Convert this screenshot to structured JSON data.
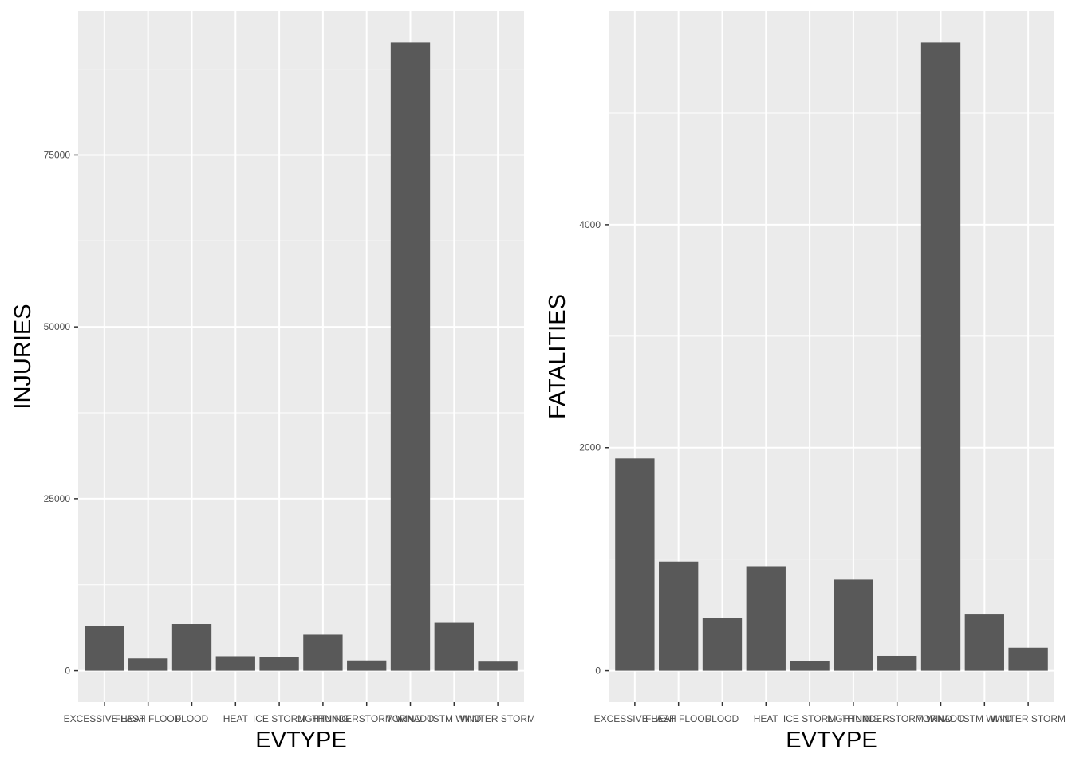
{
  "chart_data": [
    {
      "type": "bar",
      "xlabel": "EVTYPE",
      "ylabel": "INJURIES",
      "categories": [
        "EXCESSIVE HEAT",
        "FLASH FLOOD",
        "FLOOD",
        "HEAT",
        "ICE STORM",
        "LIGHTNING",
        "THUNDERSTORM WIND",
        "TORNADO",
        "TSTM WIND",
        "WINTER STORM"
      ],
      "values": [
        6525,
        1777,
        6789,
        2100,
        1975,
        5230,
        1488,
        91346,
        6957,
        1321
      ],
      "ylim": [
        0,
        91346
      ],
      "yticks": [
        0,
        25000,
        50000,
        75000
      ],
      "grid": true,
      "legend": "none"
    },
    {
      "type": "bar",
      "xlabel": "EVTYPE",
      "ylabel": "FATALITIES",
      "categories": [
        "EXCESSIVE HEAT",
        "FLASH FLOOD",
        "FLOOD",
        "HEAT",
        "ICE STORM",
        "LIGHTNING",
        "THUNDERSTORM WIND",
        "TORNADO",
        "TSTM WIND",
        "WINTER STORM"
      ],
      "values": [
        1903,
        978,
        470,
        937,
        89,
        816,
        133,
        5633,
        504,
        206
      ],
      "ylim": [
        0,
        5633
      ],
      "yticks": [
        0,
        2000,
        4000
      ],
      "grid": true,
      "legend": "none"
    }
  ]
}
